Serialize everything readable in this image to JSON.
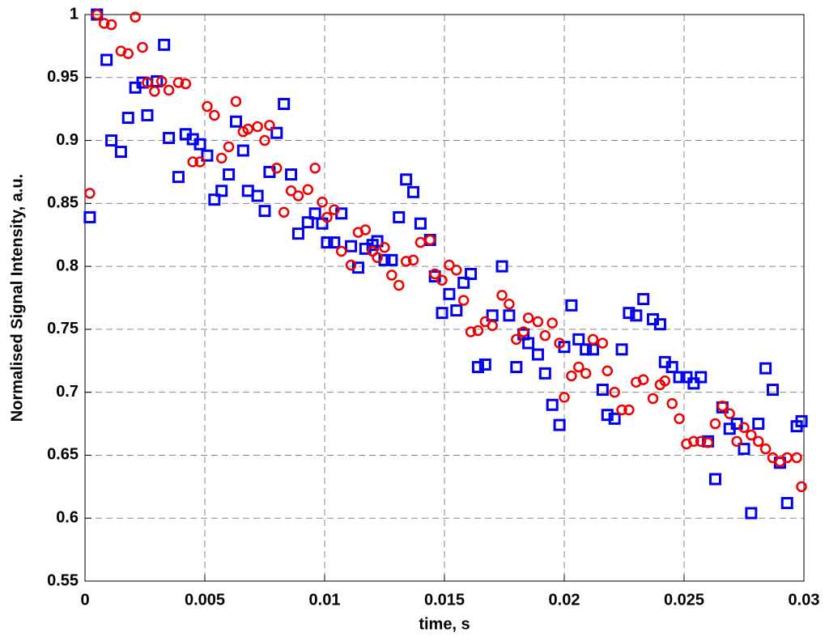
{
  "chart_data": {
    "type": "scatter",
    "xlabel": "time, s",
    "ylabel": "Normalised Signal Intensity, a.u.",
    "xlim": [
      0,
      0.03
    ],
    "ylim": [
      0.55,
      1
    ],
    "xticks": [
      0,
      0.005,
      0.01,
      0.015,
      0.02,
      0.025,
      0.03
    ],
    "yticks": [
      0.55,
      0.6,
      0.65,
      0.7,
      0.75,
      0.8,
      0.85,
      0.9,
      0.95,
      1
    ],
    "grid": true,
    "series": [
      {
        "color": "#0000ee",
        "marker": "square",
        "x": [
          0.0002,
          0.0005,
          0.0009,
          0.0011,
          0.0015,
          0.0018,
          0.0021,
          0.0024,
          0.0026,
          0.003,
          0.0033,
          0.0035,
          0.0039,
          0.0042,
          0.0045,
          0.0048,
          0.0051,
          0.0054,
          0.0057,
          0.006,
          0.0063,
          0.0066,
          0.0068,
          0.0072,
          0.0075,
          0.0077,
          0.008,
          0.0083,
          0.0086,
          0.0089,
          0.0093,
          0.0096,
          0.0099,
          0.0101,
          0.0104,
          0.0107,
          0.0111,
          0.0114,
          0.0117,
          0.012,
          0.0122,
          0.0125,
          0.0128,
          0.0131,
          0.0134,
          0.0137,
          0.014,
          0.0144,
          0.0146,
          0.0149,
          0.0152,
          0.0155,
          0.0158,
          0.0161,
          0.0164,
          0.0167,
          0.017,
          0.0174,
          0.0177,
          0.018,
          0.0183,
          0.0185,
          0.0189,
          0.0192,
          0.0195,
          0.0198,
          0.02,
          0.0203,
          0.0206,
          0.0209,
          0.0212,
          0.0216,
          0.0218,
          0.0221,
          0.0224,
          0.0227,
          0.023,
          0.0233,
          0.0237,
          0.024,
          0.0242,
          0.0245,
          0.0248,
          0.0251,
          0.0254,
          0.0257,
          0.026,
          0.0263,
          0.0266,
          0.0269,
          0.0272,
          0.0275,
          0.0278,
          0.0281,
          0.0284,
          0.0287,
          0.029,
          0.0293,
          0.0297,
          0.0299
        ],
        "values": [
          0.839,
          1.0,
          0.964,
          0.9,
          0.891,
          0.918,
          0.942,
          0.946,
          0.92,
          0.947,
          0.976,
          0.902,
          0.871,
          0.905,
          0.901,
          0.897,
          0.888,
          0.853,
          0.86,
          0.873,
          0.915,
          0.892,
          0.86,
          0.856,
          0.844,
          0.875,
          0.906,
          0.929,
          0.873,
          0.826,
          0.835,
          0.842,
          0.834,
          0.819,
          0.819,
          0.842,
          0.816,
          0.799,
          0.814,
          0.817,
          0.82,
          0.805,
          0.805,
          0.839,
          0.869,
          0.859,
          0.834,
          0.821,
          0.792,
          0.763,
          0.778,
          0.765,
          0.787,
          0.794,
          0.72,
          0.722,
          0.761,
          0.8,
          0.761,
          0.72,
          0.746,
          0.739,
          0.73,
          0.715,
          0.69,
          0.674,
          0.736,
          0.769,
          0.742,
          0.734,
          0.734,
          0.702,
          0.682,
          0.679,
          0.734,
          0.763,
          0.761,
          0.774,
          0.758,
          0.754,
          0.724,
          0.72,
          0.712,
          0.712,
          0.707,
          0.712,
          0.661,
          0.631,
          0.688,
          0.671,
          0.675,
          0.655,
          0.604,
          0.675,
          0.719,
          0.702,
          0.644,
          0.612,
          0.673,
          0.677
        ]
      },
      {
        "color": "#ee0000",
        "marker": "circle",
        "x": [
          0.0002,
          0.0005,
          0.0008,
          0.0011,
          0.0015,
          0.0018,
          0.0021,
          0.0024,
          0.0026,
          0.0029,
          0.0032,
          0.0035,
          0.0039,
          0.0042,
          0.0045,
          0.0048,
          0.0051,
          0.0054,
          0.0057,
          0.006,
          0.0063,
          0.0066,
          0.0068,
          0.0072,
          0.0075,
          0.0077,
          0.008,
          0.0083,
          0.0086,
          0.0089,
          0.0093,
          0.0096,
          0.0099,
          0.0101,
          0.0104,
          0.0107,
          0.0111,
          0.0114,
          0.0117,
          0.012,
          0.0122,
          0.0125,
          0.0128,
          0.0131,
          0.0134,
          0.0137,
          0.014,
          0.0144,
          0.0146,
          0.0149,
          0.0152,
          0.0155,
          0.0158,
          0.0161,
          0.0164,
          0.0167,
          0.017,
          0.0174,
          0.0177,
          0.018,
          0.0183,
          0.0185,
          0.0189,
          0.0192,
          0.0195,
          0.0198,
          0.02,
          0.0203,
          0.0206,
          0.0209,
          0.0212,
          0.0216,
          0.0218,
          0.0221,
          0.0224,
          0.0227,
          0.023,
          0.0233,
          0.0237,
          0.024,
          0.0242,
          0.0245,
          0.0248,
          0.0251,
          0.0254,
          0.0257,
          0.026,
          0.0263,
          0.0266,
          0.0269,
          0.0272,
          0.0275,
          0.0278,
          0.0281,
          0.0284,
          0.0287,
          0.029,
          0.0293,
          0.0297,
          0.0299
        ],
        "values": [
          0.858,
          1.0,
          0.993,
          0.992,
          0.971,
          0.969,
          0.998,
          0.974,
          0.946,
          0.939,
          0.947,
          0.94,
          0.946,
          0.945,
          0.883,
          0.883,
          0.927,
          0.92,
          0.886,
          0.895,
          0.931,
          0.907,
          0.909,
          0.911,
          0.9,
          0.912,
          0.878,
          0.843,
          0.86,
          0.856,
          0.861,
          0.878,
          0.851,
          0.839,
          0.845,
          0.812,
          0.801,
          0.827,
          0.829,
          0.812,
          0.807,
          0.815,
          0.793,
          0.785,
          0.804,
          0.805,
          0.819,
          0.821,
          0.794,
          0.789,
          0.801,
          0.797,
          0.773,
          0.748,
          0.749,
          0.756,
          0.753,
          0.777,
          0.77,
          0.742,
          0.748,
          0.759,
          0.756,
          0.745,
          0.755,
          0.739,
          0.696,
          0.713,
          0.72,
          0.715,
          0.742,
          0.739,
          0.717,
          0.7,
          0.686,
          0.686,
          0.708,
          0.71,
          0.695,
          0.706,
          0.709,
          0.691,
          0.679,
          0.659,
          0.661,
          0.661,
          0.66,
          0.675,
          0.689,
          0.683,
          0.661,
          0.672,
          0.666,
          0.661,
          0.655,
          0.648,
          0.645,
          0.648,
          0.648,
          0.625
        ]
      }
    ]
  }
}
